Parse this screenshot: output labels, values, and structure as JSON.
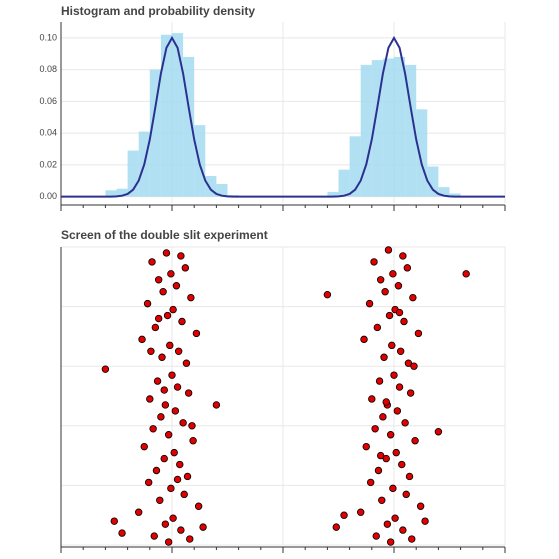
{
  "chart_data": [
    {
      "type": "histogram",
      "title": "Histogram and probability density",
      "bins": [
        -2,
        -1.9,
        -1.8,
        -1.7,
        -1.6,
        -1.5,
        -1.4,
        -1.3,
        -1.2,
        -1.1,
        -1,
        -0.9,
        -0.8,
        -0.7,
        -0.6,
        -0.5,
        -0.4,
        -0.3,
        -0.2,
        -0.1,
        0,
        0.1,
        0.2,
        0.3,
        0.4,
        0.5,
        0.6,
        0.7,
        0.8,
        0.9,
        1,
        1.1,
        1.2,
        1.3,
        1.4,
        1.5,
        1.6,
        1.7,
        1.8,
        1.9,
        2
      ],
      "values": [
        0,
        0,
        0,
        0,
        0.004,
        0.005,
        0.029,
        0.041,
        0.08,
        0.102,
        0.103,
        0.088,
        0.045,
        0.013,
        0.008,
        0.001,
        0,
        0,
        0,
        0,
        0,
        0,
        0,
        0,
        0.003,
        0.017,
        0.038,
        0.083,
        0.086,
        0.087,
        0.088,
        0.083,
        0.055,
        0.019,
        0.006,
        0.002,
        0,
        0,
        0,
        0
      ],
      "color": "#9dd8f0",
      "line": {
        "color": "#2c3190",
        "x": [
          -2,
          -1.95,
          -1.9,
          -1.85,
          -1.8,
          -1.75,
          -1.7,
          -1.65,
          -1.6,
          -1.55,
          -1.5,
          -1.45,
          -1.4,
          -1.35,
          -1.3,
          -1.25,
          -1.2,
          -1.15,
          -1.1,
          -1.05,
          -1,
          -0.95,
          -0.9,
          -0.85,
          -0.8,
          -0.75,
          -0.7,
          -0.65,
          -0.6,
          -0.55,
          -0.5,
          -0.45,
          -0.4,
          -0.35,
          -0.3,
          -0.25,
          -0.2,
          -0.15,
          -0.1,
          -0.05,
          0,
          0.05,
          0.1,
          0.15,
          0.2,
          0.25,
          0.3,
          0.35,
          0.4,
          0.45,
          0.5,
          0.55,
          0.6,
          0.65,
          0.7,
          0.75,
          0.8,
          0.85,
          0.9,
          0.95,
          1,
          1.05,
          1.1,
          1.15,
          1.2,
          1.25,
          1.3,
          1.35,
          1.4,
          1.45,
          1.5,
          1.55,
          1.6,
          1.65,
          1.7,
          1.75,
          1.8,
          1.85,
          1.9,
          1.95,
          2
        ],
        "values": [
          0,
          0,
          0,
          0,
          0,
          0,
          0,
          0,
          0,
          0,
          0.0002,
          0.0006,
          0.0017,
          0.0044,
          0.0101,
          0.0203,
          0.036,
          0.0563,
          0.0775,
          0.0938,
          0.1,
          0.0938,
          0.0775,
          0.0563,
          0.036,
          0.0203,
          0.0101,
          0.0044,
          0.0017,
          0.0006,
          0.0002,
          0,
          0,
          0,
          0,
          0,
          0,
          0,
          0,
          0,
          0,
          0,
          0,
          0,
          0,
          0,
          0,
          0,
          0,
          0,
          0.0002,
          0.0006,
          0.0017,
          0.0044,
          0.0101,
          0.0203,
          0.036,
          0.0563,
          0.0775,
          0.0938,
          0.1,
          0.0938,
          0.0775,
          0.0563,
          0.036,
          0.0203,
          0.0101,
          0.0044,
          0.0017,
          0.0006,
          0.0002,
          0,
          0,
          0,
          0,
          0,
          0,
          0,
          0,
          0,
          0
        ]
      },
      "xlim": [
        -2,
        2
      ],
      "xticks": [
        -2,
        -1,
        0,
        1,
        2
      ],
      "ylim": [
        -0.004,
        0.11
      ],
      "yticks": [
        {
          "value": 0,
          "label": "0.00"
        },
        0.02,
        0.04,
        0.06,
        0.08,
        {
          "value": 0.1,
          "label": "0.10"
        }
      ],
      "grid": true
    },
    {
      "type": "scatter",
      "title": "Screen of the double slit experiment",
      "color": "#e00000",
      "edgecolor": "#000000",
      "x": [
        -1.05,
        -0.92,
        -1.18,
        -0.88,
        -1.01,
        -1.12,
        -0.96,
        -1.08,
        -0.83,
        -1.22,
        -0.99,
        -1.04,
        -0.91,
        -1.15,
        -0.78,
        -1.27,
        -1.02,
        -0.94,
        -1.09,
        -0.87,
        -1.6,
        -1.0,
        -1.13,
        -0.95,
        -0.85,
        -1.2,
        -1.06,
        -0.97,
        -0.6,
        -1.1,
        -0.9,
        -1.17,
        -1.03,
        -0.81,
        -1.25,
        -0.98,
        -1.07,
        -0.93,
        -1.14,
        -0.86,
        -1.21,
        -1.01,
        -0.89,
        -1.11,
        -0.76,
        -1.3,
        -0.99,
        -1.06,
        -0.92,
        -1.16,
        -0.84,
        -1.03,
        -1.52,
        -1.45,
        -0.72,
        -1.19,
        -0.82,
        -1.07,
        -0.95,
        -1.12,
        0.95,
        1.08,
        0.82,
        1.12,
        0.99,
        0.88,
        1.04,
        0.92,
        1.17,
        0.78,
        1.01,
        0.96,
        1.09,
        0.85,
        1.22,
        0.73,
        0.98,
        1.06,
        0.91,
        1.13,
        0.4,
        1.0,
        0.87,
        1.05,
        1.15,
        0.8,
        0.94,
        1.03,
        1.4,
        0.9,
        1.1,
        0.83,
        0.97,
        1.19,
        0.75,
        1.02,
        0.93,
        1.07,
        0.86,
        1.14,
        0.79,
        0.99,
        1.11,
        0.89,
        1.24,
        0.7,
        1.01,
        0.94,
        1.08,
        0.84,
        1.16,
        0.97,
        0.48,
        0.55,
        1.28,
        1.65,
        1.18,
        0.93,
        1.05,
        0.88
      ],
      "values": [
        0.98,
        0.97,
        0.95,
        0.93,
        0.91,
        0.89,
        0.87,
        0.85,
        0.83,
        0.81,
        0.79,
        0.77,
        0.75,
        0.73,
        0.71,
        0.69,
        0.67,
        0.65,
        0.63,
        0.61,
        0.59,
        0.57,
        0.55,
        0.53,
        0.51,
        0.49,
        0.47,
        0.45,
        0.47,
        0.43,
        0.41,
        0.39,
        0.37,
        0.35,
        0.33,
        0.31,
        0.29,
        0.27,
        0.25,
        0.23,
        0.21,
        0.19,
        0.17,
        0.15,
        0.13,
        0.11,
        0.09,
        0.07,
        0.05,
        0.03,
        0.02,
        0.01,
        0.08,
        0.04,
        0.06,
        0.65,
        0.4,
        0.52,
        0.22,
        0.76,
        0.99,
        0.97,
        0.95,
        0.93,
        0.91,
        0.89,
        0.87,
        0.85,
        0.83,
        0.81,
        0.79,
        0.77,
        0.75,
        0.73,
        0.71,
        0.69,
        0.67,
        0.65,
        0.63,
        0.61,
        0.84,
        0.57,
        0.55,
        0.53,
        0.51,
        0.49,
        0.47,
        0.45,
        0.38,
        0.43,
        0.41,
        0.39,
        0.37,
        0.35,
        0.33,
        0.31,
        0.29,
        0.27,
        0.25,
        0.23,
        0.21,
        0.19,
        0.17,
        0.15,
        0.13,
        0.11,
        0.09,
        0.07,
        0.05,
        0.03,
        0.02,
        0.01,
        0.06,
        0.1,
        0.08,
        0.91,
        0.6,
        0.48,
        0.78,
        0.3
      ],
      "xlim": [
        -2,
        2
      ],
      "xticks": [
        -2,
        -1,
        0,
        1,
        2
      ],
      "ylim": [
        0,
        1
      ],
      "yticks": [
        0,
        0.2,
        0.4,
        0.6,
        0.8,
        1
      ],
      "grid": true
    }
  ]
}
